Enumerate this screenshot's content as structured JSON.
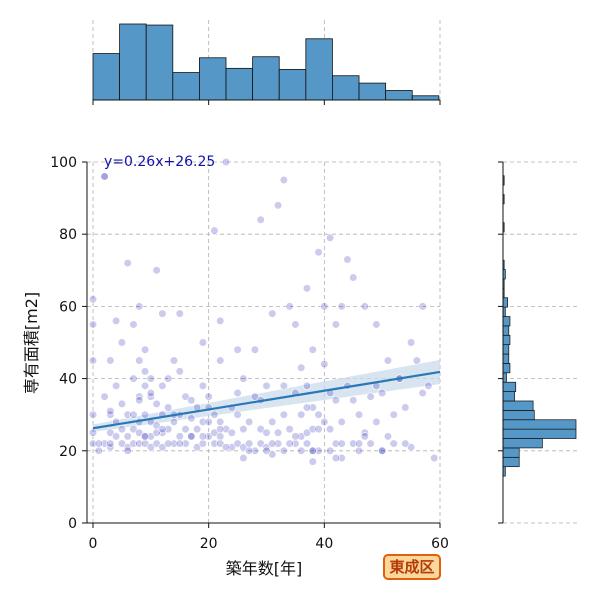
{
  "chart_data": {
    "type": "scatter",
    "xlabel": "築年数[年]",
    "ylabel": "専有面積[m2]",
    "xlim": [
      0,
      60
    ],
    "ylim": [
      0,
      100
    ],
    "xticks": [
      "0",
      "20",
      "40",
      "60"
    ],
    "yticks": [
      "0",
      "20",
      "40",
      "60",
      "80",
      "100"
    ],
    "grid": true,
    "annotation": "y=0.26x+26.25",
    "regression": {
      "slope": 0.26,
      "intercept": 26.25,
      "x": [
        0,
        60
      ]
    },
    "points": {
      "x": [
        0,
        0,
        0,
        0,
        0,
        0,
        1,
        2,
        2,
        2,
        3,
        3,
        3,
        3,
        4,
        4,
        4,
        4,
        5,
        5,
        5,
        6,
        6,
        6,
        6,
        7,
        7,
        7,
        7,
        7,
        8,
        8,
        8,
        8,
        8,
        9,
        9,
        9,
        9,
        9,
        9,
        10,
        10,
        10,
        10,
        10,
        10,
        11,
        11,
        11,
        11,
        12,
        12,
        12,
        12,
        12,
        13,
        13,
        13,
        14,
        14,
        14,
        15,
        15,
        15,
        15,
        16,
        16,
        16,
        17,
        17,
        17,
        18,
        18,
        18,
        19,
        19,
        19,
        19,
        20,
        20,
        20,
        21,
        21,
        21,
        21,
        22,
        22,
        22,
        22,
        22,
        23,
        23,
        24,
        24,
        24,
        25,
        25,
        25,
        26,
        26,
        26,
        27,
        27,
        28,
        28,
        28,
        29,
        29,
        29,
        30,
        30,
        30,
        31,
        31,
        31,
        32,
        32,
        32,
        33,
        33,
        33,
        34,
        34,
        35,
        35,
        35,
        36,
        36,
        36,
        36,
        37,
        37,
        37,
        37,
        38,
        38,
        38,
        38,
        38,
        39,
        39,
        39,
        40,
        40,
        40,
        41,
        41,
        41,
        42,
        42,
        42,
        43,
        43,
        43,
        44,
        44,
        45,
        45,
        46,
        46,
        47,
        47,
        48,
        48,
        49,
        49,
        50,
        50,
        51,
        52,
        52,
        53,
        54,
        55,
        56,
        57,
        58,
        59,
        2,
        5,
        8,
        11,
        13,
        17,
        22,
        26,
        30,
        34,
        38,
        42,
        46,
        51,
        55,
        1,
        3,
        6,
        9,
        12,
        15,
        19,
        23,
        27,
        31,
        35,
        39,
        43,
        47,
        50,
        54,
        3,
        8,
        14,
        20,
        25,
        29,
        33,
        37,
        41,
        45,
        49,
        53,
        57
      ],
      "y": [
        30,
        45,
        55,
        62,
        25,
        22,
        20,
        96,
        22,
        35,
        25,
        45,
        30,
        21,
        56,
        38,
        28,
        24,
        33,
        22,
        50,
        72,
        30,
        24,
        21,
        40,
        55,
        30,
        26,
        22,
        35,
        60,
        45,
        25,
        22,
        38,
        42,
        30,
        24,
        22,
        48,
        40,
        35,
        28,
        24,
        21,
        36,
        70,
        33,
        27,
        22,
        38,
        30,
        25,
        58,
        21,
        40,
        26,
        32,
        45,
        28,
        22,
        42,
        30,
        58,
        24,
        35,
        26,
        22,
        29,
        24,
        34,
        32,
        26,
        21,
        38,
        28,
        22,
        50,
        28,
        24,
        35,
        81,
        30,
        25,
        22,
        45,
        28,
        24,
        22,
        56,
        100,
        26,
        32,
        25,
        21,
        30,
        48,
        22,
        26,
        21,
        40,
        28,
        22,
        35,
        48,
        20,
        84,
        26,
        22,
        38,
        25,
        21,
        58,
        28,
        19,
        88,
        25,
        22,
        95,
        30,
        20,
        60,
        26,
        36,
        55,
        22,
        43,
        30,
        24,
        20,
        65,
        38,
        25,
        22,
        48,
        32,
        26,
        20,
        17,
        75,
        30,
        20,
        60,
        44,
        28,
        79,
        26,
        20,
        55,
        34,
        22,
        60,
        28,
        18,
        73,
        38,
        68,
        22,
        30,
        20,
        60,
        25,
        35,
        22,
        55,
        28,
        36,
        20,
        45,
        30,
        22,
        40,
        32,
        50,
        45,
        60,
        38,
        18,
        96,
        26,
        28,
        25,
        22,
        24,
        26,
        18,
        20,
        22,
        20,
        18,
        22,
        24,
        21,
        22,
        22,
        20,
        24,
        26,
        22,
        24,
        21,
        20,
        22,
        24,
        26,
        22,
        24,
        20,
        22,
        31,
        34,
        30,
        32,
        36,
        34,
        38,
        32,
        36,
        34,
        38,
        40,
        36
      ]
    },
    "ci_band": {
      "x": [
        0,
        60
      ],
      "lower": [
        25.2,
        38.5
      ],
      "upper": [
        27.3,
        45.2
      ]
    },
    "top_hist": {
      "bins_x": [
        0,
        4.6,
        9.2,
        13.8,
        18.4,
        23.0,
        27.6,
        32.2,
        36.8,
        41.4,
        46.0,
        50.6,
        55.2,
        59.8
      ],
      "counts": [
        44,
        72,
        71,
        26,
        40,
        30,
        41,
        29,
        58,
        23,
        16,
        9,
        4
      ]
    },
    "right_hist": {
      "bins_y": [
        13,
        15.6,
        18.2,
        20.8,
        23.4,
        26.0,
        28.6,
        31.2,
        33.8,
        36.4,
        39.0,
        41.6,
        44.2,
        46.8,
        49.4,
        52.0,
        54.6,
        57.2,
        59.8,
        62.4,
        65.0,
        67.6,
        70.2,
        72.8,
        75.4,
        78.0,
        80.6,
        83.2,
        85.8,
        88.4,
        91.0,
        93.6,
        96.2
      ],
      "counts": [
        2,
        14,
        14,
        34,
        63,
        63,
        27,
        26,
        10,
        11,
        3,
        6,
        5,
        5,
        6,
        5,
        6,
        2,
        4,
        1,
        1,
        2,
        1,
        0,
        0,
        0,
        1,
        0,
        0,
        1,
        0,
        1
      ]
    },
    "colors": {
      "point": "#1010b0",
      "line": "#2878b8",
      "band": "#c7d9e9",
      "hist": "#5597c6",
      "grid": "#b0b0b0"
    }
  },
  "badge": {
    "label": "東成区"
  }
}
